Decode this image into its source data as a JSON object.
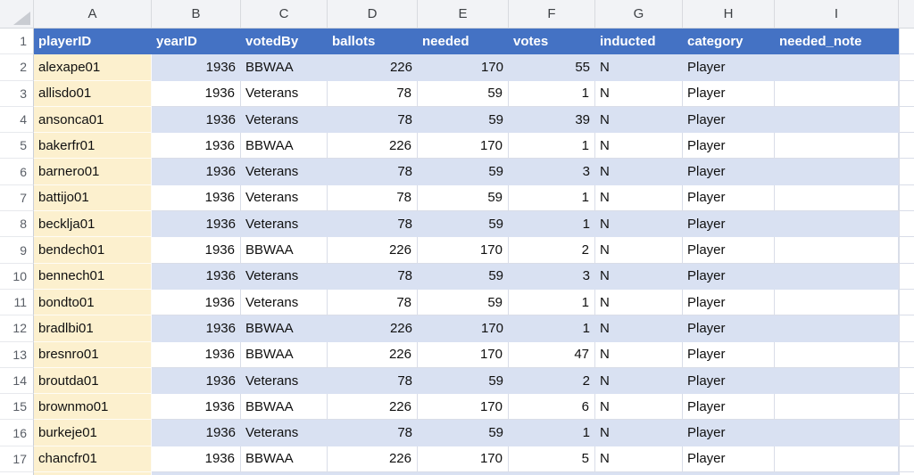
{
  "colors": {
    "header_bg": "#4472C4",
    "header_text": "#FFFFFF",
    "band_bg": "#D9E1F2",
    "col_a_bg": "#FCF0CE",
    "gridline": "#D9DDE8"
  },
  "columns": [
    "A",
    "B",
    "C",
    "D",
    "E",
    "F",
    "G",
    "H",
    "I"
  ],
  "header_row": {
    "num": "1",
    "labels": [
      "playerID",
      "yearID",
      "votedBy",
      "ballots",
      "needed",
      "votes",
      "inducted",
      "category",
      "needed_note"
    ]
  },
  "rows": [
    {
      "num": "2",
      "playerID": "alexape01",
      "yearID": "1936",
      "votedBy": "BBWAA",
      "ballots": "226",
      "needed": "170",
      "votes": "55",
      "inducted": "N",
      "category": "Player",
      "needed_note": ""
    },
    {
      "num": "3",
      "playerID": "allisdo01",
      "yearID": "1936",
      "votedBy": "Veterans",
      "ballots": "78",
      "needed": "59",
      "votes": "1",
      "inducted": "N",
      "category": "Player",
      "needed_note": ""
    },
    {
      "num": "4",
      "playerID": "ansonca01",
      "yearID": "1936",
      "votedBy": "Veterans",
      "ballots": "78",
      "needed": "59",
      "votes": "39",
      "inducted": "N",
      "category": "Player",
      "needed_note": ""
    },
    {
      "num": "5",
      "playerID": "bakerfr01",
      "yearID": "1936",
      "votedBy": "BBWAA",
      "ballots": "226",
      "needed": "170",
      "votes": "1",
      "inducted": "N",
      "category": "Player",
      "needed_note": ""
    },
    {
      "num": "6",
      "playerID": "barnero01",
      "yearID": "1936",
      "votedBy": "Veterans",
      "ballots": "78",
      "needed": "59",
      "votes": "3",
      "inducted": "N",
      "category": "Player",
      "needed_note": ""
    },
    {
      "num": "7",
      "playerID": "battijo01",
      "yearID": "1936",
      "votedBy": "Veterans",
      "ballots": "78",
      "needed": "59",
      "votes": "1",
      "inducted": "N",
      "category": "Player",
      "needed_note": ""
    },
    {
      "num": "8",
      "playerID": "becklja01",
      "yearID": "1936",
      "votedBy": "Veterans",
      "ballots": "78",
      "needed": "59",
      "votes": "1",
      "inducted": "N",
      "category": "Player",
      "needed_note": ""
    },
    {
      "num": "9",
      "playerID": "bendech01",
      "yearID": "1936",
      "votedBy": "BBWAA",
      "ballots": "226",
      "needed": "170",
      "votes": "2",
      "inducted": "N",
      "category": "Player",
      "needed_note": ""
    },
    {
      "num": "10",
      "playerID": "bennech01",
      "yearID": "1936",
      "votedBy": "Veterans",
      "ballots": "78",
      "needed": "59",
      "votes": "3",
      "inducted": "N",
      "category": "Player",
      "needed_note": ""
    },
    {
      "num": "11",
      "playerID": "bondto01",
      "yearID": "1936",
      "votedBy": "Veterans",
      "ballots": "78",
      "needed": "59",
      "votes": "1",
      "inducted": "N",
      "category": "Player",
      "needed_note": ""
    },
    {
      "num": "12",
      "playerID": "bradlbi01",
      "yearID": "1936",
      "votedBy": "BBWAA",
      "ballots": "226",
      "needed": "170",
      "votes": "1",
      "inducted": "N",
      "category": "Player",
      "needed_note": ""
    },
    {
      "num": "13",
      "playerID": "bresnro01",
      "yearID": "1936",
      "votedBy": "BBWAA",
      "ballots": "226",
      "needed": "170",
      "votes": "47",
      "inducted": "N",
      "category": "Player",
      "needed_note": ""
    },
    {
      "num": "14",
      "playerID": "broutda01",
      "yearID": "1936",
      "votedBy": "Veterans",
      "ballots": "78",
      "needed": "59",
      "votes": "2",
      "inducted": "N",
      "category": "Player",
      "needed_note": ""
    },
    {
      "num": "15",
      "playerID": "brownmo01",
      "yearID": "1936",
      "votedBy": "BBWAA",
      "ballots": "226",
      "needed": "170",
      "votes": "6",
      "inducted": "N",
      "category": "Player",
      "needed_note": ""
    },
    {
      "num": "16",
      "playerID": "burkeje01",
      "yearID": "1936",
      "votedBy": "Veterans",
      "ballots": "78",
      "needed": "59",
      "votes": "1",
      "inducted": "N",
      "category": "Player",
      "needed_note": ""
    },
    {
      "num": "17",
      "playerID": "chancfr01",
      "yearID": "1936",
      "votedBy": "BBWAA",
      "ballots": "226",
      "needed": "170",
      "votes": "5",
      "inducted": "N",
      "category": "Player",
      "needed_note": ""
    }
  ]
}
